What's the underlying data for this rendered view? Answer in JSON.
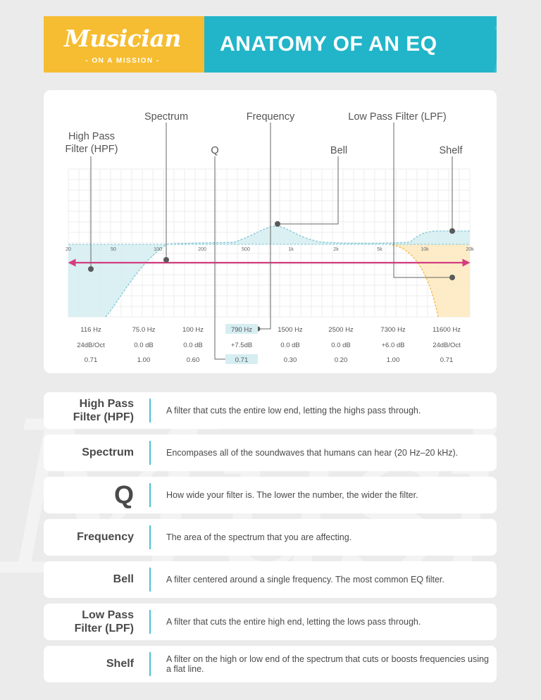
{
  "header": {
    "logo_word": "Musician",
    "logo_sub": "- ON A MISSION -",
    "title": "ANATOMY OF AN EQ",
    "colors": {
      "logo_bg": "#f6bd32",
      "title_bg": "#22b5c9"
    }
  },
  "diagram": {
    "labels": {
      "hpf_1": "High Pass",
      "hpf_2": "Filter (HPF)",
      "spectrum": "Spectrum",
      "q": "Q",
      "frequency": "Frequency",
      "lpf": "Low Pass Filter (LPF)",
      "bell": "Bell",
      "shelf": "Shelf"
    },
    "freq_ticks": [
      "20",
      "50",
      "100",
      "200",
      "500",
      "1k",
      "2k",
      "5k",
      "10k",
      "20k"
    ],
    "bands": [
      {
        "freq": "116 Hz",
        "gain": "24dB/Oct",
        "q": "0.71"
      },
      {
        "freq": "75.0 Hz",
        "gain": "0.0 dB",
        "q": "1.00"
      },
      {
        "freq": "100 Hz",
        "gain": "0.0 dB",
        "q": "0.60"
      },
      {
        "freq": "790 Hz",
        "gain": "+7.5dB",
        "q": "0.71"
      },
      {
        "freq": "1500 Hz",
        "gain": "0.0 dB",
        "q": "0.30"
      },
      {
        "freq": "2500 Hz",
        "gain": "0.0 dB",
        "q": "0.20"
      },
      {
        "freq": "7300 Hz",
        "gain": "+6.0 dB",
        "q": "1.00"
      },
      {
        "freq": "11600 Hz",
        "gain": "24dB/Oct",
        "q": "0.71"
      }
    ],
    "colors": {
      "blue_fill": "#d6eef2",
      "blue_line": "#86c9d6",
      "orange_fill": "#fdebc4",
      "orange_line": "#f4b94a",
      "arrow": "#d33d80"
    }
  },
  "definitions": [
    {
      "term": "High Pass\nFilter (HPF)",
      "text": "A filter that cuts the entire low end, letting the highs pass through."
    },
    {
      "term": "Spectrum",
      "text": "Encompases all of the soundwaves that humans can hear (20 Hz–20 kHz)."
    },
    {
      "term": "Q",
      "text": "How wide your filter is. The lower the number, the wider the filter."
    },
    {
      "term": "Frequency",
      "text": "The area of the spectrum that you are affecting."
    },
    {
      "term": "Bell",
      "text": "A filter centered around a single frequency. The most common EQ filter."
    },
    {
      "term": "Low Pass\nFilter (LPF)",
      "text": "A filter that cuts the entire high end, letting the lows pass through."
    },
    {
      "term": "Shelf",
      "text": "A filter on the high or low end of the spectrum that cuts or boosts frequencies using a flat line."
    }
  ]
}
